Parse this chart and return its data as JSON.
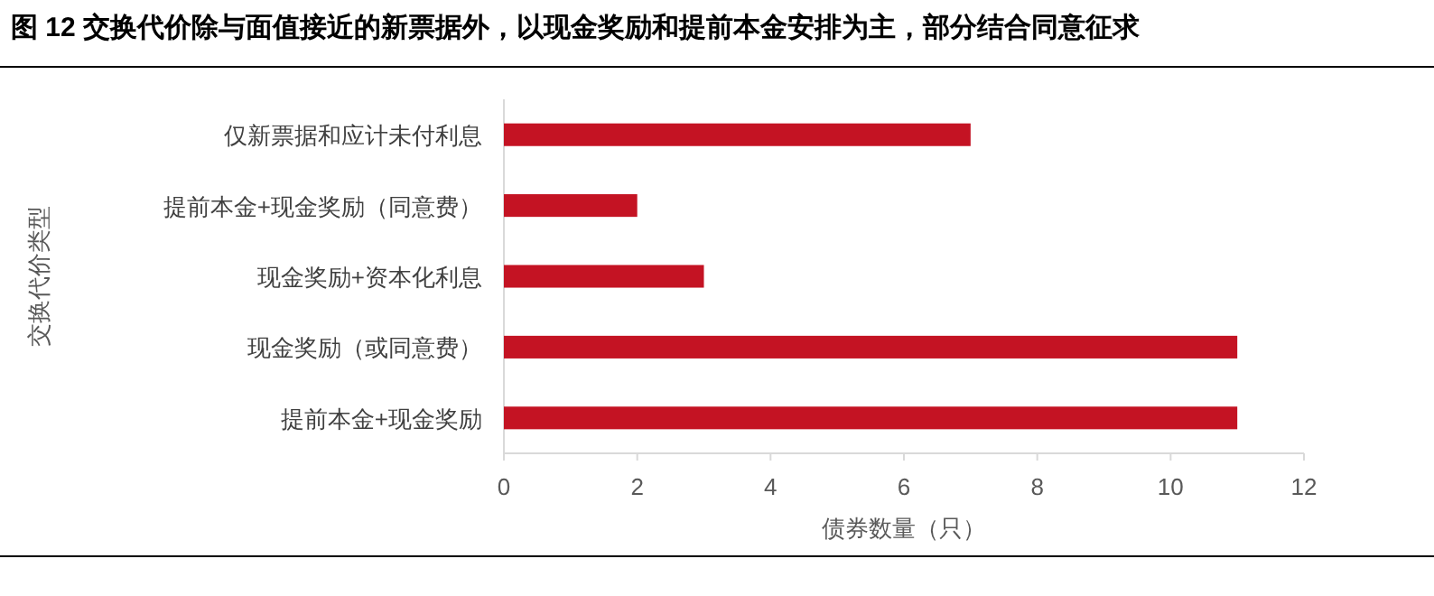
{
  "chart_data": {
    "type": "bar",
    "orientation": "horizontal",
    "title": "图 12  交换代价除与面值接近的新票据外，以现金奖励和提前本金安排为主，部分结合同意征求",
    "categories": [
      "仅新票据和应计未付利息",
      "提前本金+现金奖励（同意费）",
      "现金奖励+资本化利息",
      "现金奖励（或同意费）",
      "提前本金+现金奖励"
    ],
    "values": [
      7,
      2,
      3,
      11,
      11
    ],
    "color": "#c41323",
    "xlim": [
      0,
      12
    ],
    "xticks": [
      0,
      2,
      4,
      6,
      8,
      10,
      12
    ],
    "xlabel": "债券数量（只）",
    "ylabel": "交换代价类型"
  }
}
